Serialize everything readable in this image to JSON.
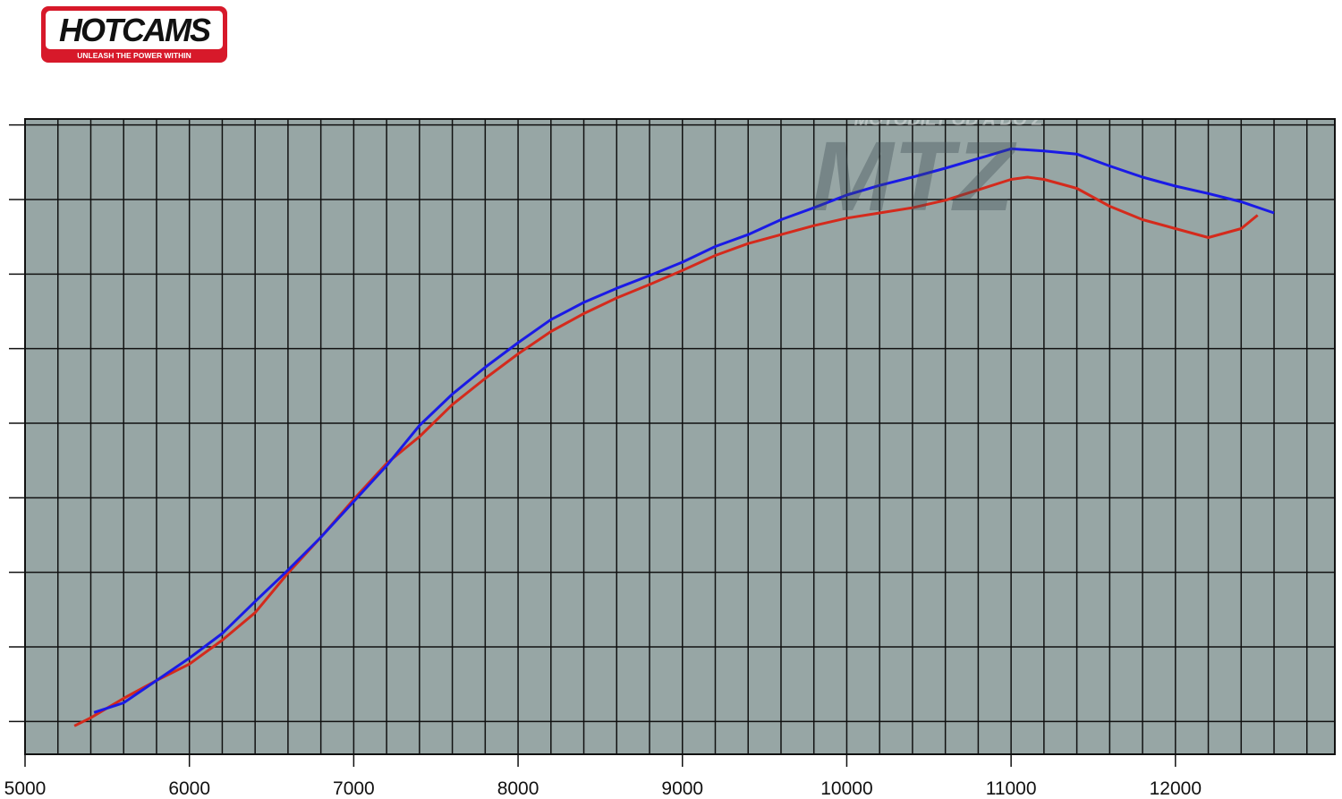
{
  "logo": {
    "brand": "HOTCAMS",
    "tagline": "UNLEASH THE POWER WITHIN"
  },
  "watermark": {
    "brand": "MTZ",
    "tagline": "MOTODÍLY OD A DO Z"
  },
  "chart_data": {
    "type": "line",
    "xlim": [
      5000,
      12970
    ],
    "xticks": [
      5000,
      6000,
      7000,
      8000,
      9000,
      10000,
      11000,
      12000
    ],
    "x_minor_ticks": [
      5200,
      5400,
      5600,
      5800,
      6200,
      6400,
      6600,
      6800,
      7200,
      7400,
      7600,
      7800,
      8200,
      8400,
      8600,
      8800,
      9200,
      9400,
      9600,
      9800,
      10200,
      10400,
      10600,
      10800,
      11200,
      11400,
      11600,
      11800,
      12200,
      12400,
      12600,
      12800
    ],
    "ylim": [
      -4.4,
      80.8
    ],
    "yticks": [
      0,
      10,
      20,
      30,
      40,
      50,
      60,
      70,
      80
    ],
    "grid": true,
    "series": [
      {
        "color": "#1a1ae6",
        "x": [
          5420,
          5600,
          5800,
          6000,
          6200,
          6400,
          6600,
          6800,
          7000,
          7200,
          7400,
          7600,
          7800,
          8000,
          8200,
          8400,
          8600,
          8800,
          9000,
          9200,
          9400,
          9600,
          9800,
          10000,
          10200,
          10400,
          10600,
          10800,
          11000,
          11200,
          11400,
          11600,
          11800,
          12000,
          12200,
          12400,
          12600
        ],
        "values": [
          1.2,
          2.5,
          5.5,
          8.5,
          11.8,
          16.1,
          20.3,
          24.7,
          29.5,
          34.3,
          39.7,
          43.9,
          47.5,
          50.8,
          53.9,
          56.2,
          58.1,
          59.8,
          61.6,
          63.7,
          65.3,
          67.3,
          68.9,
          70.6,
          71.9,
          73.0,
          74.2,
          75.5,
          76.8,
          76.5,
          76.1,
          74.5,
          73.0,
          71.8,
          70.8,
          69.7,
          68.2
        ]
      },
      {
        "color": "#d42a1c",
        "x": [
          5300,
          5400,
          5600,
          5800,
          6000,
          6200,
          6400,
          6600,
          6800,
          7000,
          7200,
          7400,
          7600,
          7800,
          8000,
          8200,
          8400,
          8600,
          8800,
          9000,
          9200,
          9400,
          9600,
          9800,
          10000,
          10200,
          10400,
          10600,
          10800,
          11000,
          11100,
          11200,
          11400,
          11600,
          11800,
          12000,
          12200,
          12400,
          12500
        ],
        "values": [
          -0.6,
          0.5,
          3.1,
          5.5,
          7.7,
          10.9,
          14.6,
          19.9,
          24.7,
          29.8,
          34.6,
          38.2,
          42.5,
          46.0,
          49.3,
          52.3,
          54.7,
          56.8,
          58.6,
          60.5,
          62.5,
          64.1,
          65.3,
          66.5,
          67.5,
          68.2,
          68.9,
          69.9,
          71.3,
          72.7,
          73.0,
          72.7,
          71.5,
          69.1,
          67.3,
          66.1,
          64.9,
          66.1,
          67.9
        ]
      }
    ]
  }
}
